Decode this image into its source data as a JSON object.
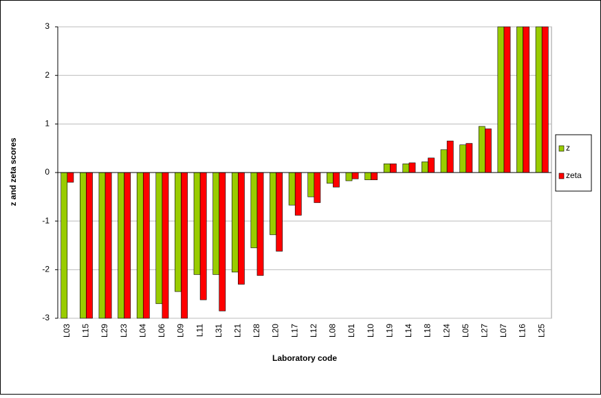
{
  "chart_data": {
    "type": "bar",
    "x_label": "Laboratory code",
    "y_label": "z and zeta scores",
    "categories": [
      "L03",
      "L15",
      "L29",
      "L23",
      "L04",
      "L06",
      "L09",
      "L11",
      "L31",
      "L21",
      "L28",
      "L20",
      "L17",
      "L12",
      "L08",
      "L01",
      "L10",
      "L19",
      "L14",
      "L18",
      "L24",
      "L05",
      "L27",
      "L07",
      "L16",
      "L25"
    ],
    "series": [
      {
        "name": "z",
        "color": "#99cc00",
        "values": [
          -3,
          -3,
          -3,
          -3,
          -3,
          -2.7,
          -2.45,
          -2.1,
          -2.1,
          -2.05,
          -1.55,
          -1.28,
          -0.67,
          -0.5,
          -0.22,
          -0.17,
          -0.15,
          0.18,
          0.18,
          0.22,
          0.47,
          0.57,
          0.95,
          3,
          3,
          3
        ]
      },
      {
        "name": "zeta",
        "color": "#ff0000",
        "values": [
          -0.2,
          -3,
          -3,
          -3,
          -3,
          -3,
          -3,
          -2.62,
          -2.85,
          -2.3,
          -2.12,
          -1.62,
          -0.88,
          -0.62,
          -0.3,
          -0.13,
          -0.15,
          0.18,
          0.2,
          0.3,
          0.65,
          0.6,
          0.9,
          3,
          3,
          3
        ]
      }
    ],
    "ylim": [
      -3,
      3
    ],
    "yticks": [
      -3,
      -2,
      -1,
      0,
      1,
      2,
      3
    ],
    "grid": true,
    "legend": "right"
  }
}
